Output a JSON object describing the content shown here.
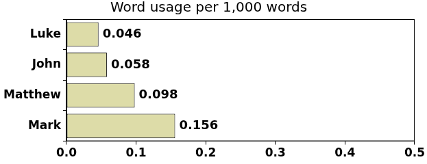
{
  "chart_data": {
    "type": "bar",
    "orientation": "horizontal",
    "title": "Word usage per 1,000 words",
    "categories": [
      "Luke",
      "John",
      "Matthew",
      "Mark"
    ],
    "values": [
      0.046,
      0.058,
      0.098,
      0.156
    ],
    "color": "#dddca8",
    "xlim": [
      0,
      0.5
    ],
    "xticks": [
      {
        "value": 0,
        "label": "0.0"
      },
      0.1,
      0.2,
      0.3,
      0.4,
      0.5
    ],
    "grid": false,
    "data_labels": true
  }
}
